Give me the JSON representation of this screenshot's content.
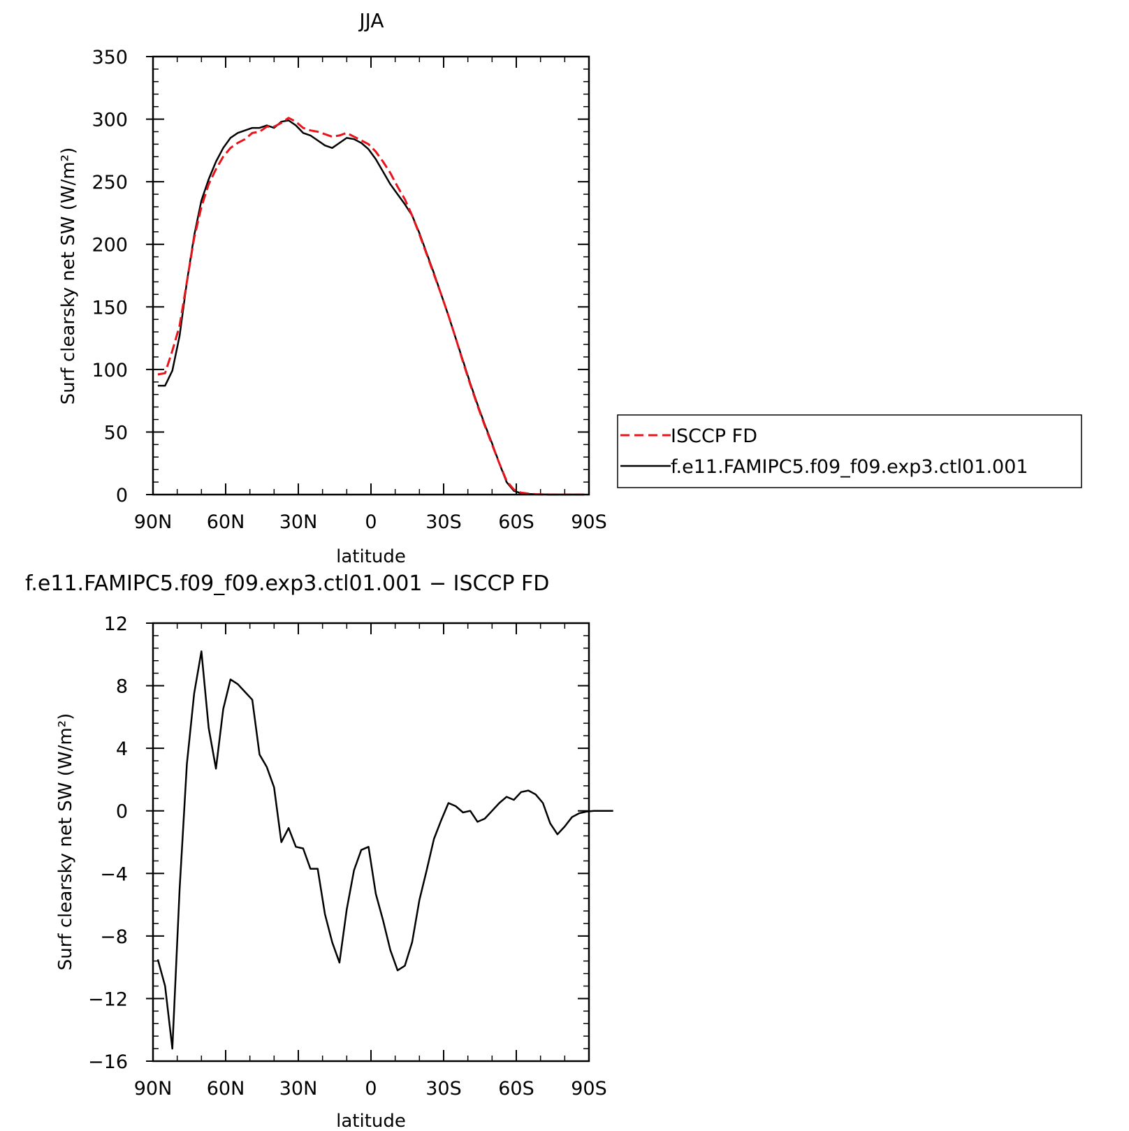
{
  "chart_data": [
    {
      "type": "line",
      "title": "JJA",
      "xlabel": "latitude",
      "ylabel": "Surf clearsky net SW (W/m²)",
      "xlim": [
        90,
        -90
      ],
      "ylim": [
        0,
        350
      ],
      "x_ticks": [
        90,
        60,
        30,
        0,
        -30,
        -60,
        -90
      ],
      "x_tick_labels": [
        "90N",
        "60N",
        "30N",
        "0",
        "30S",
        "60S",
        "90S"
      ],
      "y_ticks": [
        0,
        50,
        100,
        150,
        200,
        250,
        300,
        350
      ],
      "y_tick_labels": [
        "0",
        "50",
        "100",
        "150",
        "200",
        "250",
        "300",
        "350"
      ],
      "legend_position": "right",
      "series": [
        {
          "name": "ISCCP FD",
          "color": "#e8141c",
          "dash": "dashed",
          "points": [
            [
              88,
              96
            ],
            [
              85,
              97
            ],
            [
              82,
              115
            ],
            [
              79,
              135
            ],
            [
              76,
              170
            ],
            [
              73,
              205
            ],
            [
              70,
              230
            ],
            [
              67,
              248
            ],
            [
              64,
              260
            ],
            [
              61,
              270
            ],
            [
              58,
              277
            ],
            [
              55,
              281
            ],
            [
              52,
              284
            ],
            [
              49,
              289
            ],
            [
              46,
              290
            ],
            [
              43,
              294
            ],
            [
              40,
              294
            ],
            [
              37,
              297
            ],
            [
              34,
              301
            ],
            [
              31,
              298
            ],
            [
              28,
              293
            ],
            [
              25,
              291
            ],
            [
              22,
              290
            ],
            [
              19,
              288
            ],
            [
              16,
              286
            ],
            [
              13,
              287
            ],
            [
              10,
              289
            ],
            [
              7,
              286
            ],
            [
              4,
              283
            ],
            [
              1,
              280
            ],
            [
              -2,
              274
            ],
            [
              -5,
              266
            ],
            [
              -8,
              257
            ],
            [
              -11,
              246
            ],
            [
              -14,
              236
            ],
            [
              -17,
              223
            ],
            [
              -20,
              208
            ],
            [
              -23,
              192
            ],
            [
              -26,
              176
            ],
            [
              -29,
              160
            ],
            [
              -32,
              143
            ],
            [
              -35,
              125
            ],
            [
              -38,
              106
            ],
            [
              -41,
              88
            ],
            [
              -44,
              71
            ],
            [
              -47,
              55
            ],
            [
              -50,
              40
            ],
            [
              -53,
              25
            ],
            [
              -56,
              11
            ],
            [
              -59,
              4
            ],
            [
              -62,
              1.5
            ],
            [
              -65,
              0.8
            ],
            [
              -68,
              0.3
            ],
            [
              -71,
              0.1
            ],
            [
              -74,
              0
            ],
            [
              -77,
              0
            ],
            [
              -80,
              0
            ],
            [
              -83,
              0
            ],
            [
              -86,
              0
            ],
            [
              -88,
              0
            ]
          ]
        },
        {
          "name": "f.e11.FAMIPC5.f09_f09.exp3.ctl01.001",
          "color": "#000000",
          "dash": "solid",
          "points": [
            [
              88,
              87
            ],
            [
              85,
              87
            ],
            [
              82,
              99
            ],
            [
              79,
              127
            ],
            [
              76,
              170
            ],
            [
              73,
              207
            ],
            [
              70,
              235
            ],
            [
              67,
              252
            ],
            [
              64,
              266
            ],
            [
              61,
              277
            ],
            [
              58,
              285
            ],
            [
              55,
              289
            ],
            [
              52,
              291
            ],
            [
              49,
              293
            ],
            [
              46,
              293
            ],
            [
              43,
              295
            ],
            [
              40,
              293
            ],
            [
              37,
              298
            ],
            [
              34,
              299
            ],
            [
              31,
              295
            ],
            [
              28,
              289
            ],
            [
              25,
              287
            ],
            [
              22,
              283
            ],
            [
              19,
              279
            ],
            [
              16,
              277
            ],
            [
              13,
              281
            ],
            [
              10,
              285
            ],
            [
              7,
              284
            ],
            [
              4,
              281
            ],
            [
              1,
              276
            ],
            [
              -2,
              268
            ],
            [
              -5,
              258
            ],
            [
              -8,
              248
            ],
            [
              -11,
              240
            ],
            [
              -14,
              232
            ],
            [
              -17,
              223
            ],
            [
              -20,
              209
            ],
            [
              -23,
              193
            ],
            [
              -26,
              177
            ],
            [
              -29,
              160
            ],
            [
              -32,
              143
            ],
            [
              -35,
              125
            ],
            [
              -38,
              107
            ],
            [
              -41,
              89
            ],
            [
              -44,
              72
            ],
            [
              -47,
              56
            ],
            [
              -50,
              41
            ],
            [
              -53,
              25
            ],
            [
              -56,
              10
            ],
            [
              -59,
              3
            ],
            [
              -62,
              1
            ],
            [
              -65,
              0.5
            ],
            [
              -68,
              0.2
            ],
            [
              -71,
              0.1
            ],
            [
              -74,
              0
            ],
            [
              -77,
              0
            ],
            [
              -80,
              0
            ],
            [
              -83,
              0
            ],
            [
              -86,
              0
            ],
            [
              -88,
              0
            ]
          ]
        }
      ]
    },
    {
      "type": "line",
      "title": "f.e11.FAMIPC5.f09_f09.exp3.ctl01.001 − ISCCP FD",
      "xlabel": "latitude",
      "ylabel": "Surf clearsky net SW (W/m²)",
      "xlim": [
        90,
        -90
      ],
      "ylim": [
        -16,
        12
      ],
      "x_ticks": [
        90,
        60,
        30,
        0,
        -30,
        -60,
        -90
      ],
      "x_tick_labels": [
        "90N",
        "60N",
        "30N",
        "0",
        "30S",
        "60S",
        "90S"
      ],
      "y_ticks": [
        -16,
        -12,
        -8,
        -4,
        0,
        4,
        8,
        12
      ],
      "y_tick_labels": [
        "−16",
        "−12",
        "−8",
        "−4",
        "0",
        "4",
        "8",
        "12"
      ],
      "series": [
        {
          "color": "#000000",
          "dash": "solid",
          "points": [
            [
              88,
              -9.5
            ],
            [
              85,
              -11.2
            ],
            [
              82,
              -15.2
            ],
            [
              79,
              -5
            ],
            [
              76,
              3
            ],
            [
              73,
              7.5
            ],
            [
              70,
              10.2
            ],
            [
              67,
              5.3
            ],
            [
              64,
              2.7
            ],
            [
              61,
              6.5
            ],
            [
              58,
              8.4
            ],
            [
              55,
              8.1
            ],
            [
              52,
              7.6
            ],
            [
              49,
              7.1
            ],
            [
              46,
              3.6
            ],
            [
              43,
              2.8
            ],
            [
              40,
              1.5
            ],
            [
              37,
              -2
            ],
            [
              34,
              -1.1
            ],
            [
              31,
              -2.3
            ],
            [
              28,
              -2.4
            ],
            [
              25,
              -3.7
            ],
            [
              22,
              -3.7
            ],
            [
              19,
              -6.6
            ],
            [
              16,
              -8.4
            ],
            [
              13,
              -9.7
            ],
            [
              10,
              -6.3
            ],
            [
              7,
              -3.8
            ],
            [
              4,
              -2.5
            ],
            [
              1,
              -2.3
            ],
            [
              -2,
              -5.3
            ],
            [
              -5,
              -7
            ],
            [
              -8,
              -8.9
            ],
            [
              -11,
              -10.2
            ],
            [
              -14,
              -9.9
            ],
            [
              -17,
              -8.4
            ],
            [
              -20,
              -5.7
            ],
            [
              -23,
              -3.8
            ],
            [
              -26,
              -1.8
            ],
            [
              -29,
              -0.6
            ],
            [
              -32,
              0.5
            ],
            [
              -35,
              0.3
            ],
            [
              -38,
              -0.1
            ],
            [
              -41,
              0
            ],
            [
              -44,
              -0.7
            ],
            [
              -47,
              -0.5
            ],
            [
              -50,
              0
            ],
            [
              -53,
              0.5
            ],
            [
              -56,
              0.9
            ],
            [
              -59,
              0.7
            ],
            [
              -62,
              1.2
            ],
            [
              -65,
              1.3
            ],
            [
              -68,
              1.05
            ],
            [
              -71,
              0.5
            ],
            [
              -74,
              -0.8
            ],
            [
              -77,
              -1.5
            ],
            [
              -80,
              -1
            ],
            [
              -83,
              -0.4
            ],
            [
              -86,
              -0.15
            ],
            [
              -89,
              -0.05
            ],
            [
              -92,
              0
            ],
            [
              -95,
              0
            ],
            [
              -98,
              0
            ],
            [
              -100,
              0
            ]
          ]
        }
      ]
    }
  ]
}
